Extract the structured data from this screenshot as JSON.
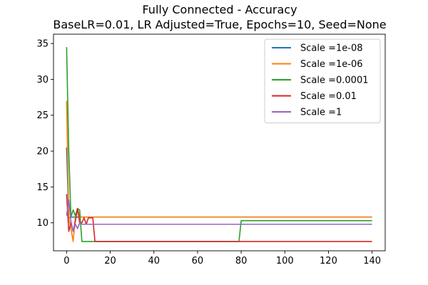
{
  "chart_data": {
    "type": "line",
    "title": "Fully Connected - Accuracy",
    "subtitle": "BaseLR=0.01, LR Adjusted=True, Epochs=10, Seed=None",
    "xlabel": "",
    "ylabel": "",
    "xlim": [
      -6,
      146
    ],
    "ylim": [
      6.1,
      36.3
    ],
    "xticks": [
      0,
      20,
      40,
      60,
      80,
      100,
      120,
      140
    ],
    "yticks": [
      10,
      15,
      20,
      25,
      30,
      35
    ],
    "grid": false,
    "legend_position": "top-right",
    "series": [
      {
        "name": "Scale =1e-08",
        "color": "#1f77b4",
        "points": [
          [
            0,
            20.5
          ],
          [
            1,
            10.7
          ],
          [
            2,
            10.8
          ],
          [
            140,
            10.8
          ]
        ]
      },
      {
        "name": "Scale =1e-06",
        "color": "#ff7f0e",
        "points": [
          [
            0,
            27.0
          ],
          [
            1,
            10.7
          ],
          [
            2,
            9.2
          ],
          [
            3,
            7.4
          ],
          [
            4,
            10.8
          ],
          [
            5,
            12.0
          ],
          [
            6,
            10.8
          ],
          [
            140,
            10.8
          ]
        ]
      },
      {
        "name": "Scale =0.0001",
        "color": "#2ca02c",
        "points": [
          [
            0,
            34.5
          ],
          [
            1,
            20.0
          ],
          [
            2,
            10.8
          ],
          [
            3,
            11.8
          ],
          [
            4,
            11.0
          ],
          [
            5,
            12.0
          ],
          [
            6,
            11.8
          ],
          [
            7,
            7.4
          ],
          [
            79,
            7.4
          ],
          [
            80,
            10.3
          ],
          [
            140,
            10.3
          ]
        ]
      },
      {
        "name": "Scale =0.01",
        "color": "#d62728",
        "points": [
          [
            0,
            14.0
          ],
          [
            1,
            8.8
          ],
          [
            2,
            10.0
          ],
          [
            3,
            8.8
          ],
          [
            4,
            10.2
          ],
          [
            5,
            12.0
          ],
          [
            6,
            10.0
          ],
          [
            7,
            10.0
          ],
          [
            8,
            10.7
          ],
          [
            9,
            9.8
          ],
          [
            10,
            10.7
          ],
          [
            12,
            10.7
          ],
          [
            13,
            7.4
          ],
          [
            140,
            7.4
          ]
        ]
      },
      {
        "name": "Scale =1",
        "color": "#9467bd",
        "points": [
          [
            0,
            11.0
          ],
          [
            1,
            13.2
          ],
          [
            2,
            10.2
          ],
          [
            3,
            8.8
          ],
          [
            4,
            9.8
          ],
          [
            5,
            9.2
          ],
          [
            6,
            10.0
          ],
          [
            7,
            9.8
          ],
          [
            140,
            9.8
          ]
        ]
      }
    ]
  }
}
